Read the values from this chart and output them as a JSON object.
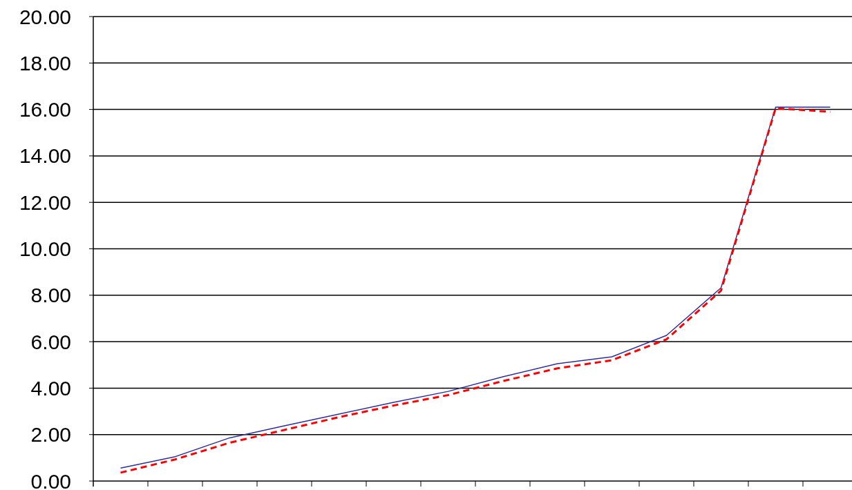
{
  "chart_data": {
    "type": "line",
    "categories": [
      null,
      null,
      null,
      null,
      null,
      null,
      null,
      null,
      null,
      null,
      null,
      null,
      null,
      null
    ],
    "series": [
      {
        "color": "#2e2e9a",
        "line_style": "solid",
        "values": [
          0.56,
          1.05,
          1.86,
          2.38,
          2.88,
          3.39,
          3.86,
          4.49,
          5.05,
          5.35,
          6.27,
          8.32,
          16.1,
          16.1
        ]
      },
      {
        "color": "#ff0000",
        "line_style": "dashed",
        "values": [
          0.36,
          0.93,
          1.65,
          2.2,
          2.75,
          3.25,
          3.7,
          4.3,
          4.85,
          5.2,
          6.1,
          8.2,
          16.05,
          15.9
        ]
      }
    ],
    "ylim": [
      0,
      20
    ],
    "yticks": [
      {
        "value": 0,
        "label": "0.00"
      },
      {
        "value": 2,
        "label": "2.00"
      },
      {
        "value": 4,
        "label": "4.00"
      },
      {
        "value": 6,
        "label": "6.00"
      },
      {
        "value": 8,
        "label": "8.00"
      },
      {
        "value": 10,
        "label": "10.00"
      },
      {
        "value": 12,
        "label": "12.00"
      },
      {
        "value": 14,
        "label": "14.00"
      },
      {
        "value": 16,
        "label": "16.00"
      },
      {
        "value": 18,
        "label": "18.00"
      },
      {
        "value": 20,
        "label": "20.00"
      }
    ],
    "grid": "y",
    "tick_labels": "y",
    "marker": "none"
  }
}
